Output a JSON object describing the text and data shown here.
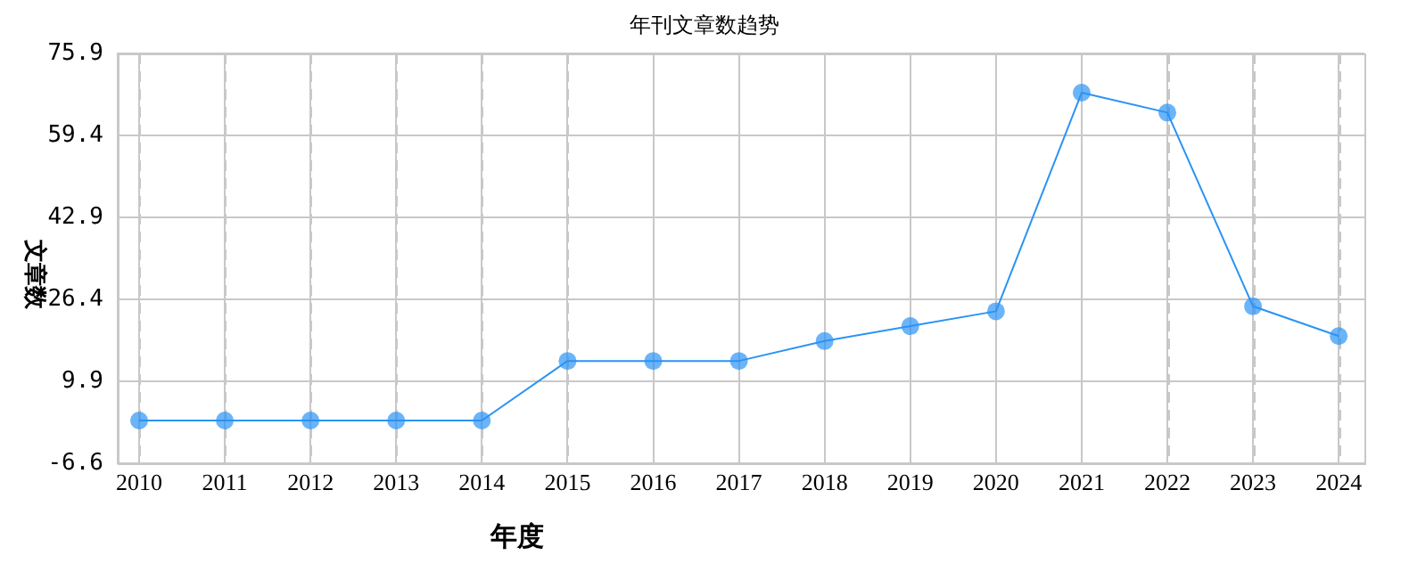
{
  "chart_data": {
    "type": "line",
    "title": "年刊文章数趋势",
    "xlabel": "年度",
    "ylabel": "文章数",
    "x": [
      2010,
      2011,
      2012,
      2013,
      2014,
      2015,
      2016,
      2017,
      2018,
      2019,
      2020,
      2021,
      2022,
      2023,
      2024
    ],
    "xlim": [
      2009.75,
      2024.3
    ],
    "xticks": [
      2010,
      2011,
      2012,
      2013,
      2014,
      2015,
      2016,
      2017,
      2018,
      2019,
      2020,
      2021,
      2022,
      2023,
      2024
    ],
    "ylim": [
      -6.6,
      75.9
    ],
    "yticks": [
      -6.6,
      9.9,
      26.4,
      42.9,
      59.4,
      75.9
    ],
    "series": [
      {
        "color": "#2a93f5",
        "values": [
          2,
          2,
          2,
          2,
          2,
          14,
          14,
          14,
          18,
          21,
          24,
          68,
          64,
          25,
          19
        ]
      }
    ],
    "grid": true,
    "legend": false,
    "marker": "circle",
    "line_style": "solid"
  }
}
